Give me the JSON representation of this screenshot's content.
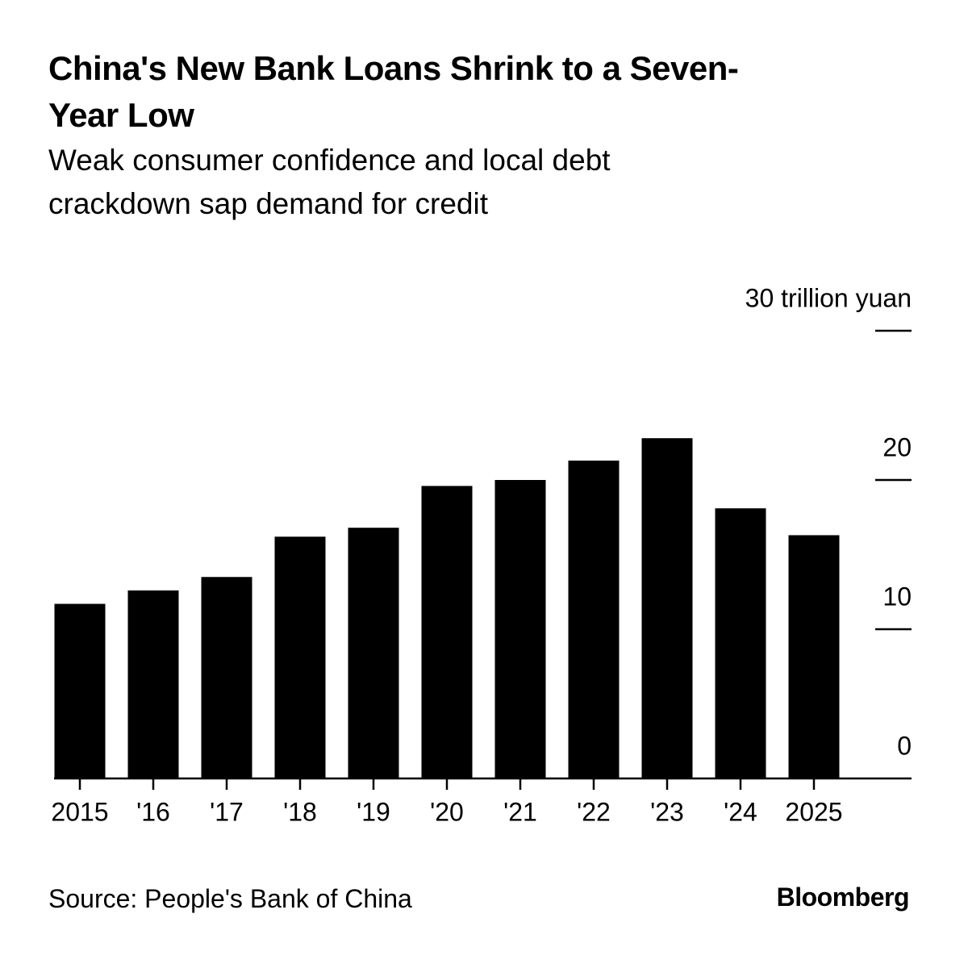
{
  "chart_data": {
    "type": "bar",
    "title": "China's New Bank Loans Shrink to a Seven-Year Low",
    "subtitle": "Weak consumer confidence and local debt crackdown sap demand for credit",
    "categories": [
      "2015",
      "'16",
      "'17",
      "'18",
      "'19",
      "'20",
      "'21",
      "'22",
      "'23",
      "'24",
      "2025"
    ],
    "values": [
      11.7,
      12.6,
      13.5,
      16.2,
      16.8,
      19.6,
      20.0,
      21.3,
      22.8,
      18.1,
      16.3
    ],
    "color": "#000000",
    "ylim": [
      0,
      30
    ],
    "yticks": [
      0,
      10,
      20,
      {
        "value": 30,
        "label": "30 trillion yuan"
      }
    ],
    "source": "Source: People's Bank of China",
    "brand": "Bloomberg"
  }
}
